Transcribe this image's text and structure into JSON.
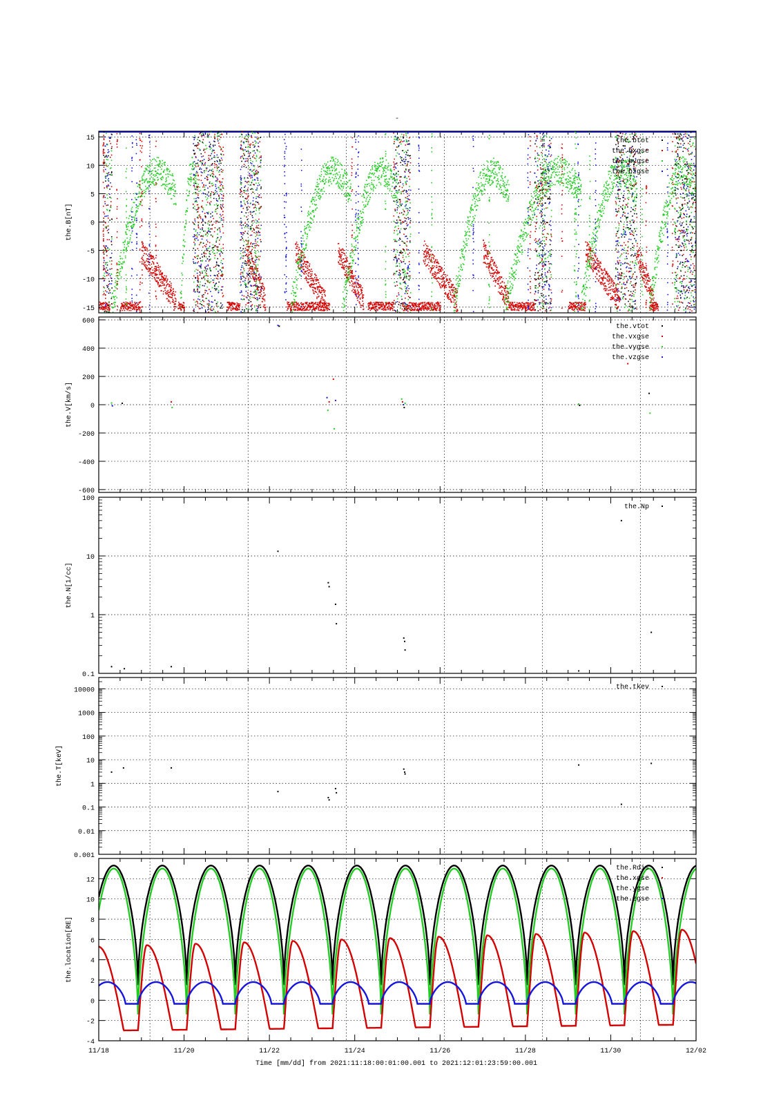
{
  "page": {
    "title": "-",
    "footer_time": "Time [mm/dd]  from 2021:11:18:00:01:00.001  to  2021:12:01:23:59:00.001"
  },
  "colors": {
    "red": "#d40000",
    "green": "#22cc22",
    "blue": "#1515dd",
    "black": "#000000"
  },
  "x_axis": {
    "domain_days": [
      0,
      14
    ],
    "tick_days": [
      0,
      2,
      4,
      6,
      8,
      10,
      12,
      14
    ],
    "tick_labels": [
      "11/18",
      "11/20",
      "11/22",
      "11/24",
      "11/26",
      "11/28",
      "11/30",
      "12/02"
    ],
    "grid_days": [
      1.2,
      3.5,
      5.8,
      8.1,
      10.4,
      12.7
    ]
  },
  "chart_data": [
    {
      "id": "B",
      "type": "scatter",
      "ylabel": "the.B[nT]",
      "ylim": [
        -16,
        16
      ],
      "yscale": "linear",
      "yticks": [
        15,
        10,
        5,
        0,
        -5,
        -10,
        -15
      ],
      "grid": true,
      "legend_position": "top-right",
      "series": [
        {
          "name": "the.btot",
          "color": "#000000"
        },
        {
          "name": "the.bxgse",
          "color": "#d40000"
        },
        {
          "name": "the.bygse",
          "color": "#22cc22"
        },
        {
          "name": "the.bzgse",
          "color": "#1515dd"
        }
      ]
    },
    {
      "id": "V",
      "type": "scatter",
      "ylabel": "the.V[km/s]",
      "ylim": [
        -620,
        620
      ],
      "yscale": "linear",
      "yticks": [
        600,
        400,
        200,
        0,
        -200,
        -400,
        -600
      ],
      "grid": true,
      "legend_position": "top-right",
      "series": [
        {
          "name": "the.vtot",
          "color": "#000000"
        },
        {
          "name": "the.vxgse",
          "color": "#d40000"
        },
        {
          "name": "the.vygse",
          "color": "#22cc22"
        },
        {
          "name": "the.vzgse",
          "color": "#1515dd"
        }
      ],
      "points": [
        {
          "x": 0.3,
          "y": 12,
          "c": "#22cc22"
        },
        {
          "x": 0.32,
          "y": -8,
          "c": "#1515dd"
        },
        {
          "x": 0.55,
          "y": 10,
          "c": "#000000"
        },
        {
          "x": 1.7,
          "y": 20,
          "c": "#d40000"
        },
        {
          "x": 1.72,
          "y": -20,
          "c": "#22cc22"
        },
        {
          "x": 4.2,
          "y": 560,
          "c": "#1515dd"
        },
        {
          "x": 4.23,
          "y": 555,
          "c": "#000000"
        },
        {
          "x": 5.35,
          "y": 50,
          "c": "#1515dd"
        },
        {
          "x": 5.37,
          "y": -40,
          "c": "#22cc22"
        },
        {
          "x": 5.4,
          "y": 20,
          "c": "#d40000"
        },
        {
          "x": 5.5,
          "y": 180,
          "c": "#d40000"
        },
        {
          "x": 5.52,
          "y": -170,
          "c": "#22cc22"
        },
        {
          "x": 5.55,
          "y": 30,
          "c": "#1515dd"
        },
        {
          "x": 7.1,
          "y": 40,
          "c": "#22cc22"
        },
        {
          "x": 7.12,
          "y": 20,
          "c": "#d40000"
        },
        {
          "x": 7.14,
          "y": 0,
          "c": "#1515dd"
        },
        {
          "x": 7.16,
          "y": -20,
          "c": "#000000"
        },
        {
          "x": 7.18,
          "y": 10,
          "c": "#22cc22"
        },
        {
          "x": 11.25,
          "y": 5,
          "c": "#22cc22"
        },
        {
          "x": 11.27,
          "y": -5,
          "c": "#000000"
        },
        {
          "x": 12.4,
          "y": 290,
          "c": "#d40000"
        },
        {
          "x": 12.9,
          "y": 80,
          "c": "#000000"
        },
        {
          "x": 12.92,
          "y": -60,
          "c": "#22cc22"
        }
      ]
    },
    {
      "id": "N",
      "type": "scatter",
      "ylabel": "the.N[1/cc]",
      "ylim": [
        0.1,
        100
      ],
      "yscale": "log",
      "yticks": [
        100,
        10,
        1,
        0.1
      ],
      "ytick_labels": [
        "100",
        "10",
        "1",
        "0.1"
      ],
      "grid": true,
      "legend_position": "top-right",
      "series": [
        {
          "name": "the.Np",
          "color": "#000000"
        }
      ],
      "points": [
        {
          "x": 0.3,
          "y": 0.13,
          "c": "#000000"
        },
        {
          "x": 0.6,
          "y": 0.12,
          "c": "#000000"
        },
        {
          "x": 1.7,
          "y": 0.13,
          "c": "#000000"
        },
        {
          "x": 4.2,
          "y": 12,
          "c": "#000000"
        },
        {
          "x": 5.38,
          "y": 3.5,
          "c": "#000000"
        },
        {
          "x": 5.4,
          "y": 3.0,
          "c": "#000000"
        },
        {
          "x": 5.55,
          "y": 1.5,
          "c": "#000000"
        },
        {
          "x": 5.57,
          "y": 0.7,
          "c": "#000000"
        },
        {
          "x": 7.15,
          "y": 0.4,
          "c": "#000000"
        },
        {
          "x": 7.17,
          "y": 0.35,
          "c": "#000000"
        },
        {
          "x": 7.18,
          "y": 0.25,
          "c": "#000000"
        },
        {
          "x": 11.25,
          "y": 0.11,
          "c": "#000000"
        },
        {
          "x": 12.25,
          "y": 40,
          "c": "#000000"
        },
        {
          "x": 12.95,
          "y": 0.5,
          "c": "#000000"
        }
      ]
    },
    {
      "id": "T",
      "type": "scatter",
      "ylabel": "the.T[keV]",
      "ylim": [
        0.001,
        30000
      ],
      "yscale": "log",
      "yticks": [
        10000,
        1000,
        100,
        10,
        1,
        0.1,
        0.01,
        0.001
      ],
      "ytick_labels": [
        "10000",
        "1000",
        "100",
        "10",
        "1",
        "0.1",
        "0.01",
        "0.001"
      ],
      "grid": true,
      "legend_position": "top-right",
      "series": [
        {
          "name": "the.tkev",
          "color": "#000000"
        }
      ],
      "points": [
        {
          "x": 0.3,
          "y": 3,
          "c": "#000000"
        },
        {
          "x": 0.58,
          "y": 4.5,
          "c": "#000000"
        },
        {
          "x": 1.7,
          "y": 4.5,
          "c": "#000000"
        },
        {
          "x": 4.2,
          "y": 0.45,
          "c": "#000000"
        },
        {
          "x": 5.38,
          "y": 0.25,
          "c": "#000000"
        },
        {
          "x": 5.4,
          "y": 0.2,
          "c": "#000000"
        },
        {
          "x": 5.55,
          "y": 0.6,
          "c": "#000000"
        },
        {
          "x": 5.57,
          "y": 0.4,
          "c": "#000000"
        },
        {
          "x": 7.15,
          "y": 4,
          "c": "#000000"
        },
        {
          "x": 7.17,
          "y": 3,
          "c": "#000000"
        },
        {
          "x": 7.18,
          "y": 2.5,
          "c": "#000000"
        },
        {
          "x": 11.25,
          "y": 6,
          "c": "#000000"
        },
        {
          "x": 12.25,
          "y": 0.13,
          "c": "#000000"
        },
        {
          "x": 12.95,
          "y": 7,
          "c": "#000000"
        }
      ]
    },
    {
      "id": "loc",
      "type": "line",
      "ylabel": "the.location[RE]",
      "ylim": [
        -4,
        14
      ],
      "yscale": "linear",
      "yticks": [
        12,
        10,
        8,
        6,
        4,
        2,
        0,
        -2,
        -4
      ],
      "grid": true,
      "legend_position": "top-right",
      "series": [
        {
          "name": "the.Rdis",
          "color": "#000000"
        },
        {
          "name": "the.xgse",
          "color": "#d40000"
        },
        {
          "name": "the.ygse",
          "color": "#22cc22"
        },
        {
          "name": "the.zgse",
          "color": "#1515dd"
        }
      ],
      "orbit": {
        "period_days": 1.14,
        "perigee_days": [
          -0.22,
          0.92,
          2.06,
          3.2,
          4.34,
          5.48,
          6.62,
          7.76,
          8.9,
          10.04,
          11.18,
          12.32,
          13.46
        ],
        "rdis_apogee": 13.3,
        "rdis_perigee": 1.5,
        "ygse_apogee": 13.0,
        "ygse_perigee": -1.4,
        "xgse_min": -3.0,
        "xgse_max": 5.3,
        "xgse_min_end": -2.4,
        "xgse_max_end": 7.0,
        "zgse_max": 1.8,
        "zgse_min": -0.35
      }
    }
  ],
  "scatter_B": {
    "red_low_segments": [
      [
        0.0,
        0.25
      ],
      [
        0.5,
        0.95
      ],
      [
        1.85,
        2.0
      ],
      [
        3.0,
        3.3
      ],
      [
        4.4,
        5.4
      ],
      [
        6.3,
        6.9
      ],
      [
        7.1,
        8.0
      ],
      [
        9.6,
        10.2
      ],
      [
        11.0,
        11.4
      ],
      [
        12.9,
        13.1
      ]
    ],
    "red_mid_segments": [
      [
        1.0,
        1.8
      ],
      [
        3.45,
        3.9
      ],
      [
        4.6,
        5.3
      ],
      [
        5.6,
        6.2
      ],
      [
        7.6,
        8.4
      ],
      [
        9.0,
        9.6
      ],
      [
        11.4,
        12.2
      ],
      [
        12.6,
        13.0
      ]
    ],
    "green_arcs": [
      [
        0.3,
        1.8
      ],
      [
        1.9,
        2.3
      ],
      [
        4.5,
        5.9
      ],
      [
        5.7,
        7.0
      ],
      [
        8.3,
        9.6
      ],
      [
        9.5,
        11.3
      ],
      [
        11.3,
        12.6
      ],
      [
        12.9,
        14.0
      ]
    ],
    "noise_bands": [
      [
        0.1,
        0.3
      ],
      [
        2.2,
        2.9
      ],
      [
        3.3,
        3.8
      ],
      [
        6.9,
        7.3
      ],
      [
        10.2,
        10.6
      ],
      [
        12.1,
        12.6
      ],
      [
        13.5,
        14.0
      ]
    ]
  }
}
